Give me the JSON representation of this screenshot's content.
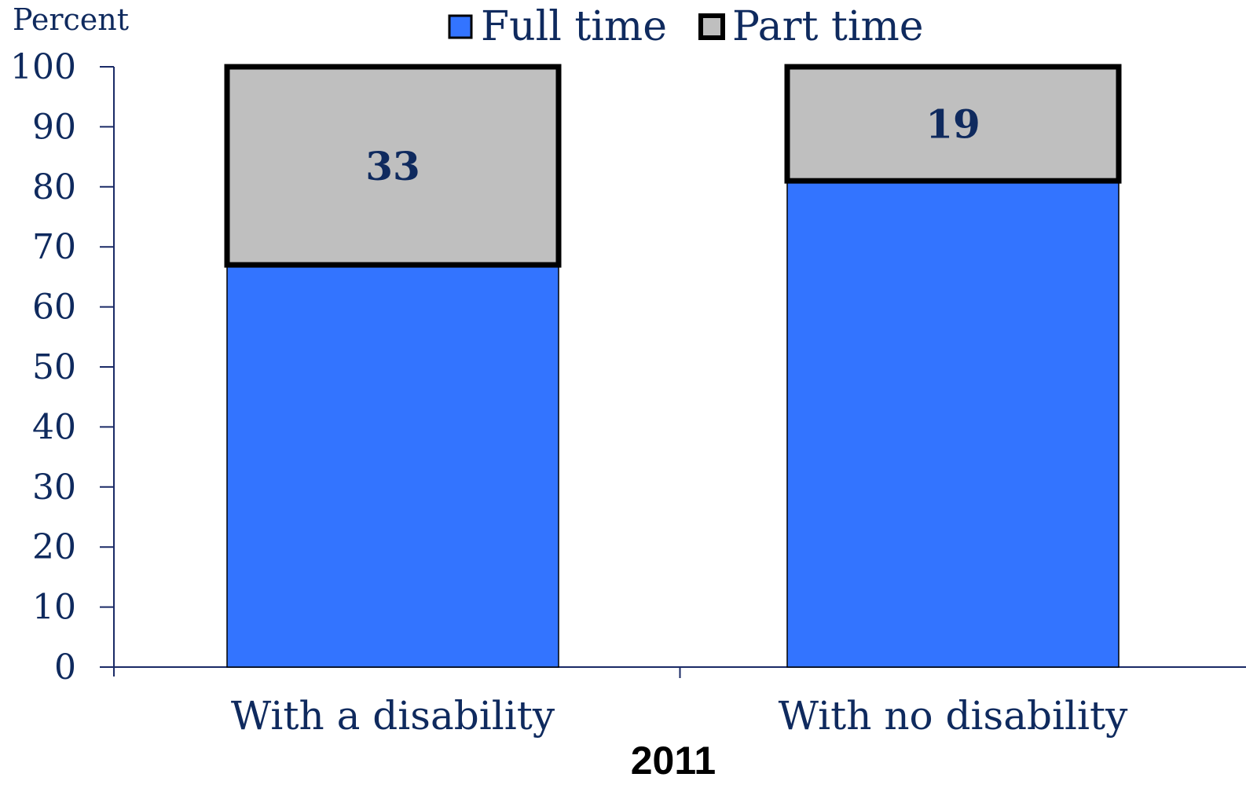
{
  "chart_data": {
    "type": "bar",
    "stacked": true,
    "categories": [
      "With a disability",
      "With no disability"
    ],
    "series": [
      {
        "name": "Full time",
        "values": [
          67,
          81
        ],
        "color": "#3374ff"
      },
      {
        "name": "Part time",
        "values": [
          33,
          19
        ],
        "color": "#bfbfbf"
      }
    ],
    "data_labels": {
      "series": "Part time",
      "values": [
        "33",
        "19"
      ]
    },
    "ylabel": "Percent",
    "xlabel": "2011",
    "ylim": [
      0,
      100
    ],
    "yticks": [
      "0",
      "10",
      "20",
      "30",
      "40",
      "50",
      "60",
      "70",
      "80",
      "90",
      "100"
    ],
    "legend": {
      "position": "top",
      "entries": [
        "Full time",
        "Part time"
      ]
    },
    "grid": false,
    "colors": {
      "text": "#0f2a5e",
      "axis": "#1a2a66"
    }
  }
}
